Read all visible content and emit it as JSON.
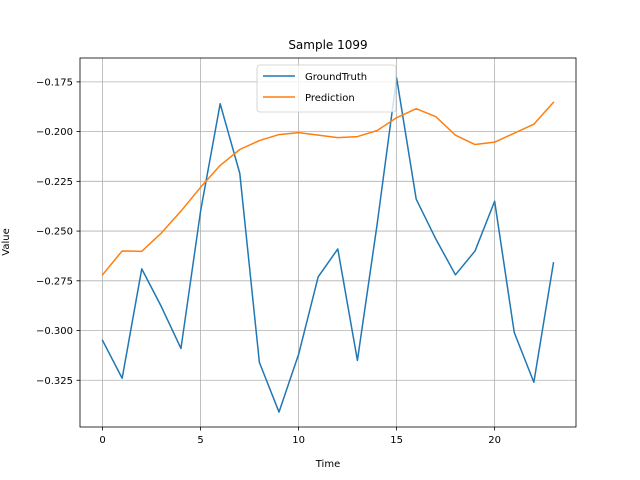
{
  "chart_data": {
    "type": "line",
    "title": "Sample 1099",
    "xlabel": "Time",
    "ylabel": "Value",
    "xlim": [
      -1.15,
      24.15
    ],
    "ylim": [
      -0.3485,
      -0.163
    ],
    "x": [
      0,
      1,
      2,
      3,
      4,
      5,
      6,
      7,
      8,
      9,
      10,
      11,
      12,
      13,
      14,
      15,
      16,
      17,
      18,
      19,
      20,
      21,
      22,
      23
    ],
    "x_ticks": [
      0,
      5,
      10,
      15,
      20
    ],
    "y_ticks": [
      -0.325,
      -0.3,
      -0.275,
      -0.25,
      -0.225,
      -0.2,
      -0.175
    ],
    "x_tick_labels": [
      "0",
      "5",
      "10",
      "15",
      "20"
    ],
    "y_tick_labels": [
      "−0.325",
      "−0.300",
      "−0.275",
      "−0.250",
      "−0.225",
      "−0.200",
      "−0.175"
    ],
    "grid": true,
    "legend_position": "upper-center",
    "series": [
      {
        "name": "GroundTruth",
        "color": "#1f77b4",
        "values": [
          -0.305,
          -0.324,
          -0.269,
          -0.288,
          -0.309,
          -0.24,
          -0.186,
          -0.221,
          -0.316,
          -0.341,
          -0.312,
          -0.273,
          -0.259,
          -0.315,
          -0.247,
          -0.173,
          -0.234,
          -0.254,
          -0.272,
          -0.26,
          -0.235,
          -0.301,
          -0.326,
          -0.266
        ]
      },
      {
        "name": "Prediction",
        "color": "#ff7f0e",
        "values": [
          -0.272,
          -0.26,
          -0.2602,
          -0.251,
          -0.24,
          -0.228,
          -0.217,
          -0.209,
          -0.2045,
          -0.2015,
          -0.2005,
          -0.2018,
          -0.203,
          -0.2025,
          -0.1995,
          -0.193,
          -0.1885,
          -0.1925,
          -0.2018,
          -0.2065,
          -0.2053,
          -0.2008,
          -0.1963,
          -0.1853
        ]
      }
    ]
  }
}
